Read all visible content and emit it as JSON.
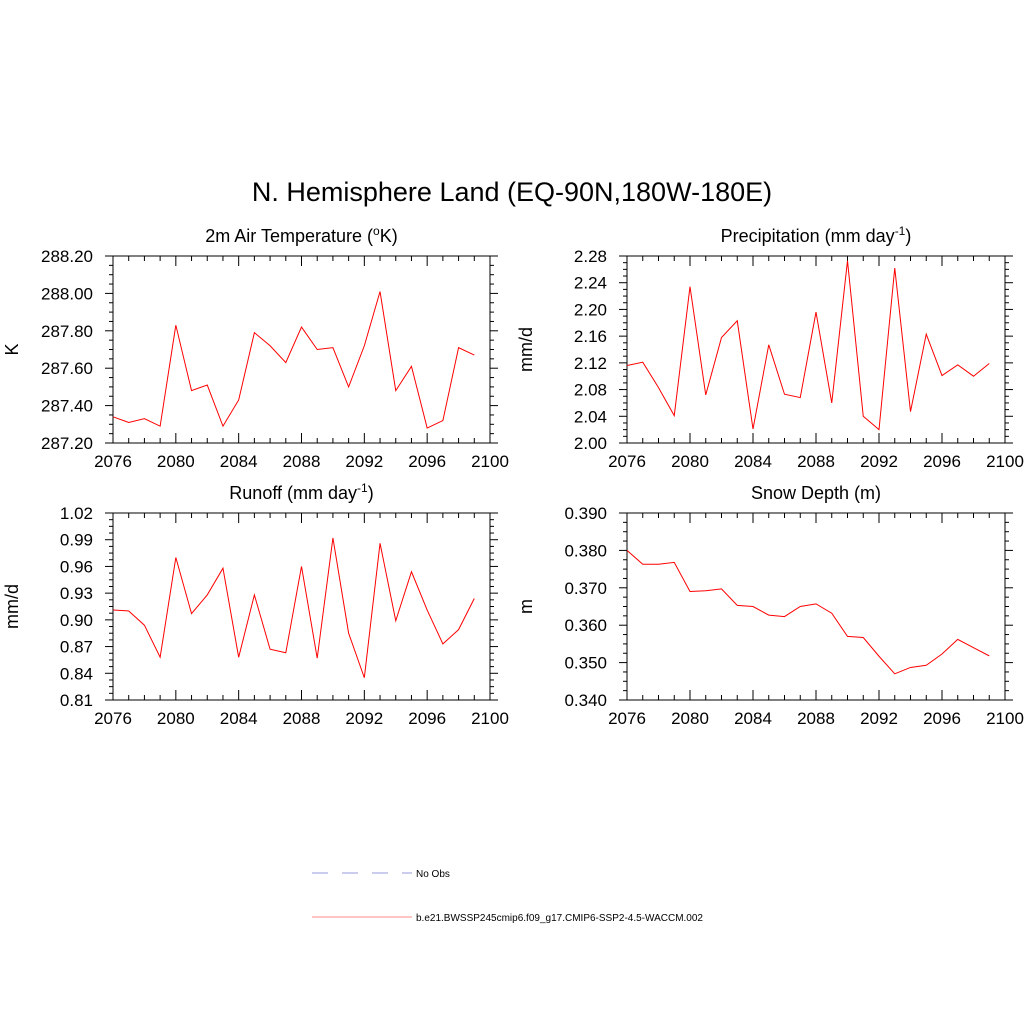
{
  "figure": {
    "title": "N. Hemisphere Land (EQ-90N,180W-180E)"
  },
  "legend": {
    "entries": [
      {
        "label": "No Obs",
        "color": "#9999dd",
        "style": "dashed"
      },
      {
        "label": "b.e21.BWSSP245cmip6.f09_g17.CMIP6-SSP2-4.5-WACCM.002",
        "color": "#ff8888",
        "style": "solid"
      }
    ]
  },
  "chart_data": [
    {
      "type": "line",
      "title": "2m Air Temperature (",
      "title_sup": "o",
      "title_end": "K)",
      "ylabel": "K",
      "xlim": [
        2076,
        2100
      ],
      "xticks": [
        2076,
        2080,
        2084,
        2088,
        2092,
        2096,
        2100
      ],
      "ylim": [
        287.2,
        288.2
      ],
      "yticks": [
        287.2,
        287.4,
        287.6,
        287.8,
        288.0,
        288.2
      ],
      "ydecimals": 2,
      "series": [
        {
          "name": "b.e21.BWSSP245cmip6.f09_g17.CMIP6-SSP2-4.5-WACCM.002",
          "color": "#ff0000",
          "x": [
            2076,
            2077,
            2078,
            2079,
            2080,
            2081,
            2082,
            2083,
            2084,
            2085,
            2086,
            2087,
            2088,
            2089,
            2090,
            2091,
            2092,
            2093,
            2094,
            2095,
            2096,
            2097,
            2098,
            2099
          ],
          "values": [
            287.34,
            287.31,
            287.33,
            287.29,
            287.83,
            287.48,
            287.51,
            287.29,
            287.43,
            287.79,
            287.72,
            287.63,
            287.82,
            287.7,
            287.71,
            287.5,
            287.72,
            288.01,
            287.48,
            287.61,
            287.28,
            287.32,
            287.71,
            287.67
          ]
        }
      ]
    },
    {
      "type": "line",
      "title": "Precipitation (mm day",
      "title_sup": "-1",
      "title_end": ")",
      "ylabel": "mm/d",
      "xlim": [
        2076,
        2100
      ],
      "xticks": [
        2076,
        2080,
        2084,
        2088,
        2092,
        2096,
        2100
      ],
      "ylim": [
        2.0,
        2.28
      ],
      "yticks": [
        2.0,
        2.04,
        2.08,
        2.12,
        2.16,
        2.2,
        2.24,
        2.28
      ],
      "ydecimals": 2,
      "series": [
        {
          "name": "b.e21.BWSSP245cmip6.f09_g17.CMIP6-SSP2-4.5-WACCM.002",
          "color": "#ff0000",
          "x": [
            2076,
            2077,
            2078,
            2079,
            2080,
            2081,
            2082,
            2083,
            2084,
            2085,
            2086,
            2087,
            2088,
            2089,
            2090,
            2091,
            2092,
            2093,
            2094,
            2095,
            2096,
            2097,
            2098,
            2099
          ],
          "values": [
            2.116,
            2.121,
            2.083,
            2.041,
            2.234,
            2.072,
            2.158,
            2.183,
            2.021,
            2.147,
            2.073,
            2.068,
            2.196,
            2.06,
            2.273,
            2.04,
            2.02,
            2.262,
            2.047,
            2.163,
            2.101,
            2.117,
            2.1,
            2.119
          ]
        }
      ]
    },
    {
      "type": "line",
      "title": "Runoff (mm day",
      "title_sup": "-1",
      "title_end": ")",
      "ylabel": "mm/d",
      "xlim": [
        2076,
        2100
      ],
      "xticks": [
        2076,
        2080,
        2084,
        2088,
        2092,
        2096,
        2100
      ],
      "ylim": [
        0.81,
        1.02
      ],
      "yticks": [
        0.81,
        0.84,
        0.87,
        0.9,
        0.93,
        0.96,
        0.99,
        1.02
      ],
      "ydecimals": 2,
      "series": [
        {
          "name": "b.e21.BWSSP245cmip6.f09_g17.CMIP6-SSP2-4.5-WACCM.002",
          "color": "#ff0000",
          "x": [
            2076,
            2077,
            2078,
            2079,
            2080,
            2081,
            2082,
            2083,
            2084,
            2085,
            2086,
            2087,
            2088,
            2089,
            2090,
            2091,
            2092,
            2093,
            2094,
            2095,
            2096,
            2097,
            2098,
            2099
          ],
          "values": [
            0.911,
            0.91,
            0.894,
            0.858,
            0.97,
            0.907,
            0.928,
            0.958,
            0.858,
            0.928,
            0.867,
            0.863,
            0.96,
            0.857,
            0.992,
            0.885,
            0.835,
            0.986,
            0.899,
            0.954,
            0.911,
            0.873,
            0.889,
            0.924
          ]
        }
      ]
    },
    {
      "type": "line",
      "title": "Snow Depth (m)",
      "title_sup": "",
      "title_end": "",
      "ylabel": "m",
      "xlim": [
        2076,
        2100
      ],
      "xticks": [
        2076,
        2080,
        2084,
        2088,
        2092,
        2096,
        2100
      ],
      "ylim": [
        0.34,
        0.39
      ],
      "yticks": [
        0.34,
        0.35,
        0.36,
        0.37,
        0.38,
        0.39
      ],
      "ydecimals": 3,
      "series": [
        {
          "name": "b.e21.BWSSP245cmip6.f09_g17.CMIP6-SSP2-4.5-WACCM.002",
          "color": "#ff0000",
          "x": [
            2076,
            2077,
            2078,
            2079,
            2080,
            2081,
            2082,
            2083,
            2084,
            2085,
            2086,
            2087,
            2088,
            2089,
            2090,
            2091,
            2092,
            2093,
            2094,
            2095,
            2096,
            2097,
            2098,
            2099
          ],
          "values": [
            0.38,
            0.3763,
            0.3763,
            0.3768,
            0.369,
            0.3692,
            0.3697,
            0.3653,
            0.365,
            0.3627,
            0.3623,
            0.365,
            0.3657,
            0.3632,
            0.357,
            0.3567,
            0.3517,
            0.347,
            0.3487,
            0.3493,
            0.3523,
            0.3562,
            0.354,
            0.3518
          ]
        }
      ]
    }
  ]
}
